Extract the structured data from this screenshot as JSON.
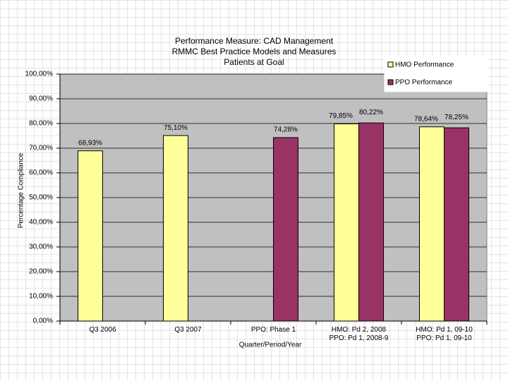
{
  "chart_data": {
    "type": "bar",
    "title": "Performance Measure:  CAD Management\nRMMC Best Practice Models and Measures\nPatients at Goal",
    "x_label": "Quarter/Period/Year",
    "y_label": "Percentage Compliance",
    "categories": [
      "Q3 2006",
      "Q3 2007",
      "PPO:  Phase 1",
      "HMO: Pd 2, 2008\nPPO: Pd 1, 2008-9",
      "HMO:  Pd 1, 09-10\nPPO:  Pd  1, 09-10"
    ],
    "series": [
      {
        "name": "HMO Performance",
        "color": "#ffff99",
        "values": [
          68.93,
          75.1,
          null,
          79.85,
          78.64
        ],
        "value_labels": [
          "68,93%",
          "75,10%",
          null,
          "79,85%",
          "78,64%"
        ]
      },
      {
        "name": "PPO Performance",
        "color": "#993366",
        "values": [
          null,
          null,
          74.28,
          80.22,
          78.25
        ],
        "value_labels": [
          null,
          null,
          "74,28%",
          "80,22%",
          "78,25%"
        ]
      }
    ],
    "ylim": [
      0,
      100
    ],
    "yticks": [
      {
        "value": 0,
        "label": "0,00%"
      },
      {
        "value": 10,
        "label": "10,00%"
      },
      {
        "value": 20,
        "label": "20,00%"
      },
      {
        "value": 30,
        "label": "30,00%"
      },
      {
        "value": 40,
        "label": "40,00%"
      },
      {
        "value": 50,
        "label": "50,00%"
      },
      {
        "value": 60,
        "label": "60,00%"
      },
      {
        "value": 70,
        "label": "70,00%"
      },
      {
        "value": 80,
        "label": "80,00%"
      },
      {
        "value": 90,
        "label": "90,00%"
      },
      {
        "value": 100,
        "label": "100,00%"
      }
    ],
    "grid": true,
    "plot_background": "#c0c0c0",
    "legend_position": "top-right"
  }
}
